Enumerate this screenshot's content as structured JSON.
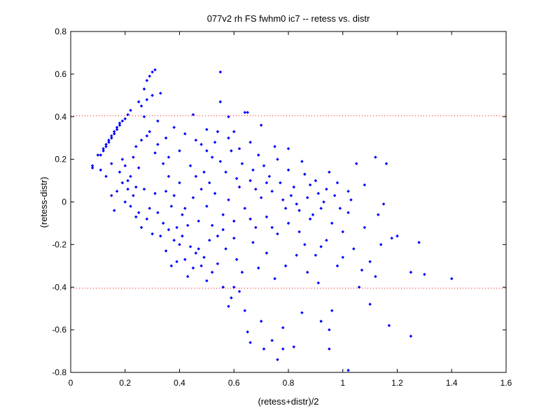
{
  "chart_data": {
    "type": "scatter",
    "title": "077v2 rh FS fwhm0 ic7 -- retess vs. distr",
    "xlabel": "(retess+distr)/2",
    "ylabel": "(retess-distr)",
    "xlim": [
      0,
      1.6
    ],
    "ylim": [
      -0.8,
      0.8
    ],
    "xticks": [
      "0",
      "0.2",
      "0.4",
      "0.6",
      "0.8",
      "1",
      "1.2",
      "1.4",
      "1.6"
    ],
    "yticks": [
      "0.8",
      "0.6",
      "0.4",
      "0.2",
      "0",
      "-0.2",
      "-0.4",
      "-0.6",
      "-0.8"
    ],
    "grid": false,
    "marker_color": "#0000ff",
    "reference_line_color": "#ff0000",
    "reference_lines_y": [
      0.405,
      -0.405
    ],
    "series": [
      {
        "points": [
          [
            0.08,
            0.16
          ],
          [
            0.08,
            0.17
          ],
          [
            0.1,
            0.22
          ],
          [
            0.11,
            0.22
          ],
          [
            0.12,
            0.24
          ],
          [
            0.12,
            0.25
          ],
          [
            0.13,
            0.26
          ],
          [
            0.13,
            0.27
          ],
          [
            0.14,
            0.28
          ],
          [
            0.14,
            0.29
          ],
          [
            0.15,
            0.3
          ],
          [
            0.15,
            0.31
          ],
          [
            0.16,
            0.32
          ],
          [
            0.16,
            0.33
          ],
          [
            0.17,
            0.34
          ],
          [
            0.17,
            0.35
          ],
          [
            0.18,
            0.36
          ],
          [
            0.18,
            0.37
          ],
          [
            0.19,
            0.38
          ],
          [
            0.2,
            0.39
          ],
          [
            0.21,
            0.41
          ],
          [
            0.22,
            0.43
          ],
          [
            0.25,
            0.47
          ],
          [
            0.27,
            0.53
          ],
          [
            0.28,
            0.57
          ],
          [
            0.29,
            0.59
          ],
          [
            0.3,
            0.61
          ],
          [
            0.31,
            0.62
          ],
          [
            0.3,
            0.5
          ],
          [
            0.33,
            0.51
          ],
          [
            0.26,
            0.45
          ],
          [
            0.28,
            0.48
          ],
          [
            0.11,
            0.15
          ],
          [
            0.13,
            0.12
          ],
          [
            0.15,
            0.18
          ],
          [
            0.17,
            0.05
          ],
          [
            0.16,
            -0.04
          ],
          [
            0.15,
            0.03
          ],
          [
            0.18,
            0.14
          ],
          [
            0.19,
            0.2
          ],
          [
            0.2,
            0.17
          ],
          [
            0.21,
            0.1
          ],
          [
            0.22,
            0.12
          ],
          [
            0.23,
            0.21
          ],
          [
            0.24,
            0.07
          ],
          [
            0.25,
            0.16
          ],
          [
            0.26,
            0.29
          ],
          [
            0.27,
            0.4
          ],
          [
            0.29,
            0.33
          ],
          [
            0.31,
            0.23
          ],
          [
            0.32,
            0.27
          ],
          [
            0.35,
            0.3
          ],
          [
            0.38,
            0.35
          ],
          [
            0.4,
            0.24
          ],
          [
            0.2,
            0.0
          ],
          [
            0.22,
            -0.02
          ],
          [
            0.24,
            -0.07
          ],
          [
            0.26,
            -0.12
          ],
          [
            0.28,
            -0.08
          ],
          [
            0.3,
            -0.15
          ],
          [
            0.32,
            -0.05
          ],
          [
            0.34,
            -0.1
          ],
          [
            0.36,
            -0.13
          ],
          [
            0.38,
            -0.18
          ],
          [
            0.4,
            -0.2
          ],
          [
            0.42,
            -0.27
          ],
          [
            0.44,
            -0.21
          ],
          [
            0.46,
            -0.24
          ],
          [
            0.48,
            -0.3
          ],
          [
            0.5,
            -0.37
          ],
          [
            0.52,
            -0.33
          ],
          [
            0.54,
            -0.29
          ],
          [
            0.56,
            -0.4
          ],
          [
            0.58,
            -0.49
          ],
          [
            0.59,
            -0.45
          ],
          [
            0.6,
            -0.4
          ],
          [
            0.62,
            -0.42
          ],
          [
            0.64,
            -0.51
          ],
          [
            0.65,
            -0.61
          ],
          [
            0.66,
            -0.66
          ],
          [
            0.7,
            -0.56
          ],
          [
            0.71,
            -0.69
          ],
          [
            0.74,
            -0.65
          ],
          [
            0.76,
            -0.74
          ],
          [
            0.78,
            -0.69
          ],
          [
            0.78,
            -0.59
          ],
          [
            0.82,
            -0.68
          ],
          [
            0.85,
            -0.52
          ],
          [
            0.92,
            -0.56
          ],
          [
            0.95,
            -0.6
          ],
          [
            0.96,
            -0.51
          ],
          [
            0.95,
            -0.69
          ],
          [
            1.02,
            -0.79
          ],
          [
            1.1,
            -0.48
          ],
          [
            1.17,
            -0.58
          ],
          [
            1.25,
            -0.63
          ],
          [
            1.18,
            -0.17
          ],
          [
            1.2,
            -0.16
          ],
          [
            1.28,
            -0.19
          ],
          [
            1.25,
            -0.33
          ],
          [
            1.3,
            -0.34
          ],
          [
            1.4,
            -0.36
          ],
          [
            1.12,
            0.21
          ],
          [
            1.16,
            0.18
          ],
          [
            1.05,
            0.18
          ],
          [
            1.08,
            0.08
          ],
          [
            1.02,
            0.05
          ],
          [
            0.98,
            0.09
          ],
          [
            0.95,
            0.14
          ],
          [
            0.9,
            0.1
          ],
          [
            0.88,
            0.08
          ],
          [
            0.85,
            0.19
          ],
          [
            0.8,
            0.15
          ],
          [
            0.75,
            0.26
          ],
          [
            0.7,
            0.36
          ],
          [
            0.65,
            0.42
          ],
          [
            0.64,
            0.42
          ],
          [
            0.6,
            0.33
          ],
          [
            0.58,
            0.4
          ],
          [
            0.55,
            0.47
          ],
          [
            0.55,
            0.61
          ],
          [
            0.5,
            0.34
          ],
          [
            0.45,
            0.41
          ],
          [
            0.42,
            0.32
          ],
          [
            0.48,
            0.27
          ],
          [
            0.52,
            0.21
          ],
          [
            0.46,
            0.12
          ],
          [
            0.44,
            0.17
          ],
          [
            0.4,
            0.09
          ],
          [
            0.36,
            0.12
          ],
          [
            0.34,
            0.18
          ],
          [
            0.38,
            0.03
          ],
          [
            0.42,
            -0.03
          ],
          [
            0.45,
            0.02
          ],
          [
            0.48,
            0.06
          ],
          [
            0.5,
            -0.02
          ],
          [
            0.53,
            0.04
          ],
          [
            0.56,
            -0.06
          ],
          [
            0.58,
            0.01
          ],
          [
            0.6,
            -0.09
          ],
          [
            0.62,
            0.07
          ],
          [
            0.64,
            -0.03
          ],
          [
            0.66,
            0.1
          ],
          [
            0.68,
            -0.12
          ],
          [
            0.7,
            0.02
          ],
          [
            0.72,
            -0.07
          ],
          [
            0.74,
            0.05
          ],
          [
            0.76,
            -0.15
          ],
          [
            0.78,
            0.01
          ],
          [
            0.8,
            -0.1
          ],
          [
            0.82,
            0.07
          ],
          [
            0.84,
            -0.04
          ],
          [
            0.86,
            -0.2
          ],
          [
            0.88,
            -0.08
          ],
          [
            0.9,
            -0.25
          ],
          [
            0.92,
            -0.03
          ],
          [
            0.94,
            -0.18
          ],
          [
            0.96,
            -0.1
          ],
          [
            0.98,
            -0.3
          ],
          [
            1.0,
            -0.14
          ],
          [
            1.02,
            -0.05
          ],
          [
            1.04,
            -0.22
          ],
          [
            1.06,
            -0.4
          ],
          [
            1.08,
            -0.12
          ],
          [
            1.1,
            -0.28
          ],
          [
            1.12,
            -0.35
          ],
          [
            1.14,
            -0.2
          ],
          [
            1.13,
            -0.06
          ],
          [
            1.15,
            -0.01
          ],
          [
            1.03,
            0.01
          ],
          [
            0.99,
            -0.03
          ],
          [
            0.97,
            0.03
          ],
          [
            0.93,
            0.0
          ],
          [
            0.91,
            0.04
          ],
          [
            0.89,
            -0.06
          ],
          [
            0.87,
            0.02
          ],
          [
            0.83,
            -0.01
          ],
          [
            0.81,
            0.03
          ],
          [
            0.79,
            -0.03
          ],
          [
            0.77,
            0.09
          ],
          [
            0.73,
            0.12
          ],
          [
            0.71,
            0.17
          ],
          [
            0.69,
            0.22
          ],
          [
            0.67,
            0.15
          ],
          [
            0.63,
            0.18
          ],
          [
            0.61,
            0.11
          ],
          [
            0.59,
            0.24
          ],
          [
            0.57,
            0.14
          ],
          [
            0.55,
            0.19
          ],
          [
            0.53,
            0.28
          ],
          [
            0.51,
            0.09
          ],
          [
            0.49,
            0.14
          ],
          [
            0.47,
            -0.09
          ],
          [
            0.43,
            -0.11
          ],
          [
            0.41,
            -0.06
          ],
          [
            0.39,
            -0.12
          ],
          [
            0.37,
            -0.02
          ],
          [
            0.35,
            0.05
          ],
          [
            0.33,
            -0.16
          ],
          [
            0.31,
            0.04
          ],
          [
            0.29,
            -0.03
          ],
          [
            0.27,
            0.06
          ],
          [
            0.25,
            -0.05
          ],
          [
            0.23,
            0.03
          ],
          [
            0.21,
            0.06
          ],
          [
            0.19,
            0.09
          ],
          [
            0.24,
            0.26
          ],
          [
            0.28,
            0.31
          ],
          [
            0.32,
            0.38
          ],
          [
            0.36,
            0.21
          ],
          [
            0.54,
            -0.16
          ],
          [
            0.57,
            -0.22
          ],
          [
            0.61,
            -0.27
          ],
          [
            0.63,
            -0.33
          ],
          [
            0.67,
            -0.19
          ],
          [
            0.69,
            -0.31
          ],
          [
            0.72,
            -0.24
          ],
          [
            0.75,
            -0.36
          ],
          [
            0.79,
            -0.3
          ],
          [
            0.83,
            -0.25
          ],
          [
            0.87,
            -0.33
          ],
          [
            0.91,
            -0.38
          ],
          [
            0.45,
            -0.31
          ],
          [
            0.49,
            -0.26
          ],
          [
            0.51,
            -0.18
          ],
          [
            0.47,
            -0.22
          ],
          [
            0.43,
            -0.35
          ],
          [
            0.39,
            -0.28
          ],
          [
            0.35,
            -0.23
          ],
          [
            0.37,
            -0.3
          ],
          [
            0.41,
            -0.16
          ],
          [
            0.52,
            -0.11
          ],
          [
            0.56,
            -0.13
          ],
          [
            0.6,
            -0.17
          ],
          [
            0.66,
            -0.08
          ],
          [
            0.74,
            -0.12
          ],
          [
            0.84,
            -0.14
          ],
          [
            0.92,
            -0.21
          ],
          [
            1.0,
            -0.26
          ],
          [
            1.07,
            -0.32
          ],
          [
            0.68,
            0.06
          ],
          [
            0.72,
            0.09
          ],
          [
            0.76,
            0.2
          ],
          [
            0.8,
            0.25
          ],
          [
            0.86,
            0.13
          ],
          [
            0.94,
            0.06
          ],
          [
            0.66,
            0.28
          ],
          [
            0.62,
            0.25
          ],
          [
            0.58,
            0.3
          ],
          [
            0.54,
            0.33
          ],
          [
            0.5,
            0.24
          ],
          [
            0.46,
            0.29
          ]
        ]
      }
    ]
  }
}
